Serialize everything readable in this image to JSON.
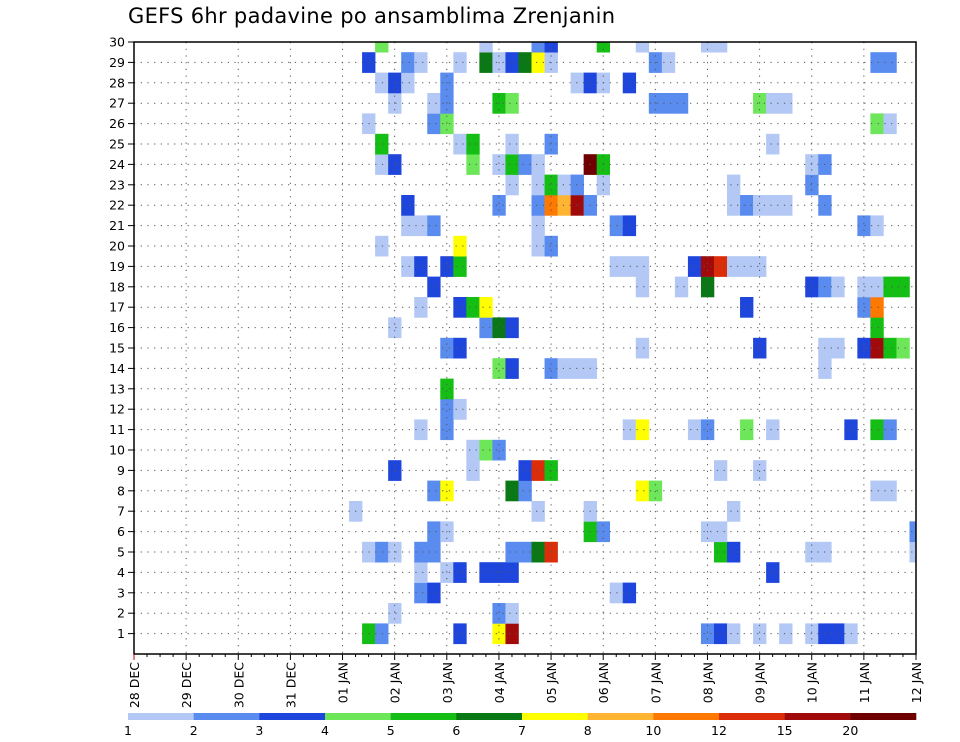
{
  "chart_data": {
    "type": "heatmap",
    "title": "GEFS 6hr padavine po ansamblima Zrenjanin",
    "xlabel": "",
    "ylabel": "",
    "x_tick_labels": [
      "28 DEC",
      "29 DEC",
      "30 DEC",
      "31 DEC",
      "01 JAN",
      "02 JAN",
      "03 JAN",
      "04 JAN",
      "05 JAN",
      "06 JAN",
      "07 JAN",
      "08 JAN",
      "09 JAN",
      "10 JAN",
      "11 JAN",
      "12 JAN"
    ],
    "x_unit": "6-hour steps from 28 DEC 00Z",
    "xlim": [
      0,
      60
    ],
    "y_tick_labels": [
      "1",
      "2",
      "3",
      "4",
      "5",
      "6",
      "7",
      "8",
      "9",
      "10",
      "11",
      "12",
      "13",
      "14",
      "15",
      "16",
      "17",
      "18",
      "19",
      "20",
      "21",
      "22",
      "23",
      "24",
      "25",
      "26",
      "27",
      "28",
      "29",
      "30"
    ],
    "ylim": [
      0,
      30
    ],
    "grid": true,
    "colorbar": {
      "labels": [
        "1",
        "2",
        "3",
        "4",
        "5",
        "6",
        "7",
        "8",
        "10",
        "12",
        "15",
        "20"
      ],
      "colors": [
        "#b4c8f5",
        "#5a8cf0",
        "#1e46dc",
        "#6ee65a",
        "#14be14",
        "#0a7814",
        "#ffff00",
        "#ffb432",
        "#ff7800",
        "#dc2d0a",
        "#a00a0a",
        "#6e0000"
      ]
    },
    "cells": [
      [
        18,
        1,
        5
      ],
      [
        19,
        1,
        2
      ],
      [
        25,
        1,
        3
      ],
      [
        28,
        1,
        7
      ],
      [
        29,
        1,
        11
      ],
      [
        44,
        1,
        2
      ],
      [
        45,
        1,
        3
      ],
      [
        46,
        1,
        1
      ],
      [
        48,
        1,
        1
      ],
      [
        50,
        1,
        1
      ],
      [
        52,
        1,
        1
      ],
      [
        53,
        1,
        3
      ],
      [
        54,
        1,
        3
      ],
      [
        55,
        1,
        1
      ],
      [
        20,
        2,
        1
      ],
      [
        28,
        2,
        2
      ],
      [
        29,
        2,
        1
      ],
      [
        22,
        3,
        2
      ],
      [
        23,
        3,
        3
      ],
      [
        37,
        3,
        1
      ],
      [
        38,
        3,
        3
      ],
      [
        22,
        4,
        1
      ],
      [
        24,
        4,
        1
      ],
      [
        25,
        4,
        3
      ],
      [
        27,
        4,
        3
      ],
      [
        28,
        4,
        3
      ],
      [
        29,
        4,
        3
      ],
      [
        49,
        4,
        3
      ],
      [
        18,
        5,
        1
      ],
      [
        19,
        5,
        2
      ],
      [
        20,
        5,
        1
      ],
      [
        22,
        5,
        2
      ],
      [
        23,
        5,
        2
      ],
      [
        29,
        5,
        2
      ],
      [
        30,
        5,
        2
      ],
      [
        31,
        5,
        6
      ],
      [
        32,
        5,
        10
      ],
      [
        45,
        5,
        5
      ],
      [
        46,
        5,
        3
      ],
      [
        52,
        5,
        1
      ],
      [
        53,
        5,
        1
      ],
      [
        60,
        5,
        1
      ],
      [
        23,
        6,
        2
      ],
      [
        24,
        6,
        1
      ],
      [
        35,
        6,
        5
      ],
      [
        36,
        6,
        2
      ],
      [
        44,
        6,
        1
      ],
      [
        45,
        6,
        1
      ],
      [
        60,
        6,
        2
      ],
      [
        17,
        7,
        1
      ],
      [
        31,
        7,
        1
      ],
      [
        35,
        7,
        1
      ],
      [
        46,
        7,
        1
      ],
      [
        23,
        8,
        2
      ],
      [
        24,
        8,
        7
      ],
      [
        29,
        8,
        6
      ],
      [
        30,
        8,
        2
      ],
      [
        39,
        8,
        7
      ],
      [
        40,
        8,
        4
      ],
      [
        57,
        8,
        1
      ],
      [
        58,
        8,
        1
      ],
      [
        20,
        9,
        3
      ],
      [
        26,
        9,
        1
      ],
      [
        30,
        9,
        3
      ],
      [
        31,
        9,
        10
      ],
      [
        32,
        9,
        5
      ],
      [
        45,
        9,
        1
      ],
      [
        48,
        9,
        1
      ],
      [
        26,
        10,
        1
      ],
      [
        27,
        10,
        4
      ],
      [
        28,
        10,
        2
      ],
      [
        22,
        11,
        1
      ],
      [
        24,
        11,
        2
      ],
      [
        38,
        11,
        1
      ],
      [
        39,
        11,
        7
      ],
      [
        43,
        11,
        1
      ],
      [
        44,
        11,
        2
      ],
      [
        47,
        11,
        4
      ],
      [
        49,
        11,
        1
      ],
      [
        55,
        11,
        3
      ],
      [
        57,
        11,
        5
      ],
      [
        58,
        11,
        2
      ],
      [
        24,
        12,
        2
      ],
      [
        25,
        12,
        1
      ],
      [
        24,
        13,
        5
      ],
      [
        28,
        14,
        4
      ],
      [
        29,
        14,
        3
      ],
      [
        32,
        14,
        2
      ],
      [
        33,
        14,
        1
      ],
      [
        34,
        14,
        1
      ],
      [
        35,
        14,
        1
      ],
      [
        53,
        14,
        1
      ],
      [
        24,
        15,
        2
      ],
      [
        25,
        15,
        3
      ],
      [
        39,
        15,
        1
      ],
      [
        48,
        15,
        3
      ],
      [
        53,
        15,
        1
      ],
      [
        54,
        15,
        1
      ],
      [
        56,
        15,
        3
      ],
      [
        57,
        15,
        11
      ],
      [
        58,
        15,
        5
      ],
      [
        59,
        15,
        4
      ],
      [
        20,
        16,
        1
      ],
      [
        27,
        16,
        2
      ],
      [
        28,
        16,
        6
      ],
      [
        29,
        16,
        3
      ],
      [
        57,
        16,
        5
      ],
      [
        22,
        17,
        1
      ],
      [
        25,
        17,
        3
      ],
      [
        26,
        17,
        5
      ],
      [
        27,
        17,
        7
      ],
      [
        47,
        17,
        3
      ],
      [
        56,
        17,
        2
      ],
      [
        57,
        17,
        9
      ],
      [
        23,
        18,
        3
      ],
      [
        39,
        18,
        1
      ],
      [
        42,
        18,
        1
      ],
      [
        44,
        18,
        6
      ],
      [
        52,
        18,
        3
      ],
      [
        53,
        18,
        2
      ],
      [
        54,
        18,
        1
      ],
      [
        56,
        18,
        1
      ],
      [
        57,
        18,
        1
      ],
      [
        58,
        18,
        5
      ],
      [
        59,
        18,
        5
      ],
      [
        21,
        19,
        1
      ],
      [
        22,
        19,
        3
      ],
      [
        24,
        19,
        3
      ],
      [
        25,
        19,
        5
      ],
      [
        37,
        19,
        1
      ],
      [
        38,
        19,
        1
      ],
      [
        39,
        19,
        1
      ],
      [
        43,
        19,
        3
      ],
      [
        44,
        19,
        11
      ],
      [
        45,
        19,
        10
      ],
      [
        46,
        19,
        1
      ],
      [
        47,
        19,
        1
      ],
      [
        48,
        19,
        1
      ],
      [
        19,
        20,
        1
      ],
      [
        25,
        20,
        7
      ],
      [
        31,
        20,
        1
      ],
      [
        32,
        20,
        2
      ],
      [
        21,
        21,
        1
      ],
      [
        22,
        21,
        1
      ],
      [
        23,
        21,
        2
      ],
      [
        31,
        21,
        1
      ],
      [
        37,
        21,
        2
      ],
      [
        38,
        21,
        3
      ],
      [
        56,
        21,
        2
      ],
      [
        57,
        21,
        1
      ],
      [
        21,
        22,
        3
      ],
      [
        28,
        22,
        2
      ],
      [
        31,
        22,
        2
      ],
      [
        32,
        22,
        9
      ],
      [
        33,
        22,
        8
      ],
      [
        34,
        22,
        11
      ],
      [
        35,
        22,
        2
      ],
      [
        46,
        22,
        1
      ],
      [
        47,
        22,
        2
      ],
      [
        48,
        22,
        1
      ],
      [
        49,
        22,
        1
      ],
      [
        50,
        22,
        1
      ],
      [
        53,
        22,
        2
      ],
      [
        29,
        23,
        1
      ],
      [
        31,
        23,
        1
      ],
      [
        32,
        23,
        5
      ],
      [
        33,
        23,
        1
      ],
      [
        34,
        23,
        2
      ],
      [
        36,
        23,
        1
      ],
      [
        46,
        23,
        1
      ],
      [
        52,
        23,
        2
      ],
      [
        19,
        24,
        1
      ],
      [
        20,
        24,
        3
      ],
      [
        26,
        24,
        4
      ],
      [
        28,
        24,
        1
      ],
      [
        29,
        24,
        5
      ],
      [
        30,
        24,
        2
      ],
      [
        31,
        24,
        1
      ],
      [
        35,
        24,
        12
      ],
      [
        36,
        24,
        5
      ],
      [
        52,
        24,
        1
      ],
      [
        53,
        24,
        2
      ],
      [
        19,
        25,
        5
      ],
      [
        25,
        25,
        1
      ],
      [
        26,
        25,
        5
      ],
      [
        29,
        25,
        1
      ],
      [
        32,
        25,
        2
      ],
      [
        49,
        25,
        1
      ],
      [
        18,
        26,
        1
      ],
      [
        23,
        26,
        2
      ],
      [
        24,
        26,
        4
      ],
      [
        57,
        26,
        4
      ],
      [
        58,
        26,
        1
      ],
      [
        20,
        27,
        1
      ],
      [
        23,
        27,
        1
      ],
      [
        24,
        27,
        2
      ],
      [
        28,
        27,
        5
      ],
      [
        29,
        27,
        4
      ],
      [
        40,
        27,
        2
      ],
      [
        41,
        27,
        2
      ],
      [
        42,
        27,
        2
      ],
      [
        48,
        27,
        4
      ],
      [
        49,
        27,
        1
      ],
      [
        50,
        27,
        1
      ],
      [
        19,
        28,
        1
      ],
      [
        20,
        28,
        3
      ],
      [
        21,
        28,
        1
      ],
      [
        24,
        28,
        2
      ],
      [
        34,
        28,
        1
      ],
      [
        35,
        28,
        3
      ],
      [
        36,
        28,
        1
      ],
      [
        38,
        28,
        3
      ],
      [
        18,
        29,
        3
      ],
      [
        21,
        29,
        2
      ],
      [
        22,
        29,
        1
      ],
      [
        25,
        29,
        1
      ],
      [
        27,
        29,
        6
      ],
      [
        28,
        29,
        1
      ],
      [
        29,
        29,
        3
      ],
      [
        30,
        29,
        6
      ],
      [
        31,
        29,
        7
      ],
      [
        32,
        29,
        1
      ],
      [
        40,
        29,
        2
      ],
      [
        41,
        29,
        1
      ],
      [
        57,
        29,
        2
      ],
      [
        58,
        29,
        2
      ],
      [
        19,
        30,
        4
      ],
      [
        27,
        30,
        1
      ],
      [
        31,
        30,
        2
      ],
      [
        32,
        30,
        3
      ],
      [
        36,
        30,
        5
      ],
      [
        39,
        30,
        1
      ],
      [
        44,
        30,
        1
      ],
      [
        45,
        30,
        1
      ]
    ],
    "legend_position": "bottom"
  }
}
